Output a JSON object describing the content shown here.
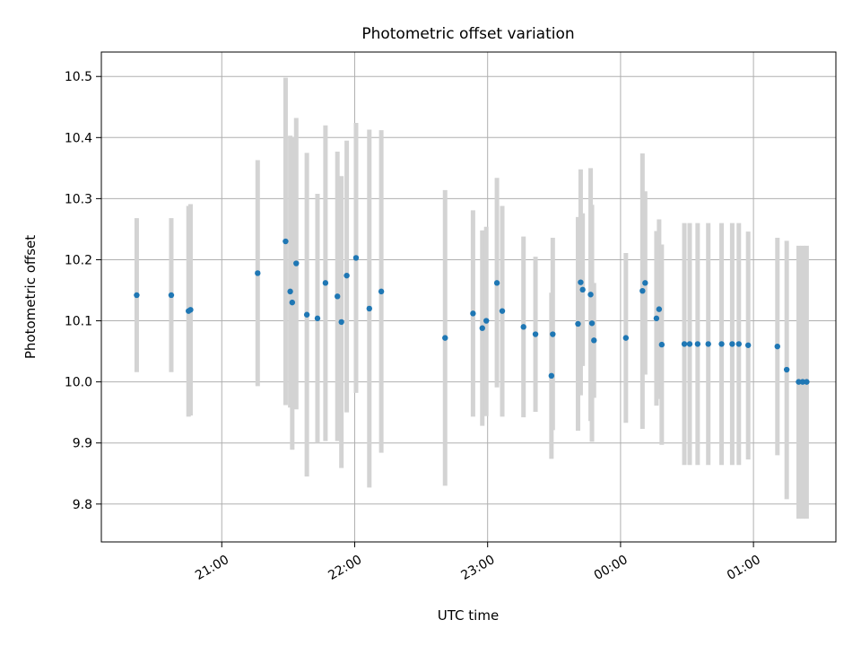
{
  "chart_data": {
    "type": "scatter",
    "title": "Photometric offset variation",
    "xlabel": "UTC time",
    "ylabel": "Photometric offset",
    "x_unit": "UTC time (hours relative to 00:00)",
    "xlim": [
      -2.906,
      2.62
    ],
    "ylim": [
      9.738,
      10.54
    ],
    "x_ticks": [
      {
        "value": -2.0,
        "label": "21:00"
      },
      {
        "value": -1.0,
        "label": "22:00"
      },
      {
        "value": 0.0,
        "label": "23:00"
      },
      {
        "value": 1.0,
        "label": "00:00"
      },
      {
        "value": 2.0,
        "label": "01:00"
      }
    ],
    "y_ticks": [
      {
        "value": 9.8,
        "label": "9.8"
      },
      {
        "value": 9.9,
        "label": "9.9"
      },
      {
        "value": 10.0,
        "label": "10.0"
      },
      {
        "value": 10.1,
        "label": "10.1"
      },
      {
        "value": 10.2,
        "label": "10.2"
      },
      {
        "value": 10.3,
        "label": "10.3"
      },
      {
        "value": 10.4,
        "label": "10.4"
      },
      {
        "value": 10.5,
        "label": "10.5"
      }
    ],
    "grid": true,
    "legend": "none",
    "point_color": "#1f77b4",
    "errorbar_color": "#d3d3d3",
    "points": [
      {
        "x": -2.64,
        "y": 10.142,
        "lo": 10.016,
        "hi": 10.268
      },
      {
        "x": -2.38,
        "y": 10.142,
        "lo": 10.016,
        "hi": 10.268
      },
      {
        "x": -2.25,
        "y": 10.116,
        "lo": 9.943,
        "hi": 10.288
      },
      {
        "x": -2.235,
        "y": 10.118,
        "lo": 9.945,
        "hi": 10.291
      },
      {
        "x": -1.73,
        "y": 10.178,
        "lo": 9.993,
        "hi": 10.363
      },
      {
        "x": -1.52,
        "y": 10.23,
        "lo": 9.962,
        "hi": 10.498
      },
      {
        "x": -1.485,
        "y": 10.148,
        "lo": 9.958,
        "hi": 10.403
      },
      {
        "x": -1.47,
        "y": 10.13,
        "lo": 9.889,
        "hi": 10.401
      },
      {
        "x": -1.44,
        "y": 10.194,
        "lo": 9.955,
        "hi": 10.432
      },
      {
        "x": -1.36,
        "y": 10.11,
        "lo": 9.845,
        "hi": 10.375
      },
      {
        "x": -1.28,
        "y": 10.104,
        "lo": 9.9,
        "hi": 10.308
      },
      {
        "x": -1.22,
        "y": 10.162,
        "lo": 9.903,
        "hi": 10.42
      },
      {
        "x": -1.13,
        "y": 10.14,
        "lo": 9.903,
        "hi": 10.377
      },
      {
        "x": -1.1,
        "y": 10.098,
        "lo": 9.859,
        "hi": 10.337
      },
      {
        "x": -1.06,
        "y": 10.174,
        "lo": 9.95,
        "hi": 10.395
      },
      {
        "x": -0.99,
        "y": 10.203,
        "lo": 9.982,
        "hi": 10.424
      },
      {
        "x": -0.89,
        "y": 10.12,
        "lo": 9.827,
        "hi": 10.413
      },
      {
        "x": -0.8,
        "y": 10.148,
        "lo": 9.884,
        "hi": 10.412
      },
      {
        "x": -0.32,
        "y": 10.072,
        "lo": 9.83,
        "hi": 10.314
      },
      {
        "x": -0.11,
        "y": 10.112,
        "lo": 9.943,
        "hi": 10.281
      },
      {
        "x": -0.04,
        "y": 10.088,
        "lo": 9.928,
        "hi": 10.248
      },
      {
        "x": -0.01,
        "y": 10.1,
        "lo": 9.944,
        "hi": 10.254
      },
      {
        "x": 0.07,
        "y": 10.162,
        "lo": 9.991,
        "hi": 10.334
      },
      {
        "x": 0.11,
        "y": 10.116,
        "lo": 9.943,
        "hi": 10.288
      },
      {
        "x": 0.27,
        "y": 10.09,
        "lo": 9.942,
        "hi": 10.238
      },
      {
        "x": 0.36,
        "y": 10.078,
        "lo": 9.951,
        "hi": 10.205
      },
      {
        "x": 0.48,
        "y": 10.01,
        "lo": 9.874,
        "hi": 10.146
      },
      {
        "x": 0.49,
        "y": 10.078,
        "lo": 9.921,
        "hi": 10.236
      },
      {
        "x": 0.68,
        "y": 10.095,
        "lo": 9.92,
        "hi": 10.27
      },
      {
        "x": 0.7,
        "y": 10.163,
        "lo": 9.978,
        "hi": 10.348
      },
      {
        "x": 0.715,
        "y": 10.151,
        "lo": 10.026,
        "hi": 10.276
      },
      {
        "x": 0.775,
        "y": 10.143,
        "lo": 9.936,
        "hi": 10.35
      },
      {
        "x": 0.785,
        "y": 10.096,
        "lo": 9.902,
        "hi": 10.29
      },
      {
        "x": 0.8,
        "y": 10.068,
        "lo": 9.974,
        "hi": 10.162
      },
      {
        "x": 1.04,
        "y": 10.072,
        "lo": 9.933,
        "hi": 10.211
      },
      {
        "x": 1.165,
        "y": 10.149,
        "lo": 9.923,
        "hi": 10.374
      },
      {
        "x": 1.185,
        "y": 10.162,
        "lo": 10.012,
        "hi": 10.312
      },
      {
        "x": 1.27,
        "y": 10.104,
        "lo": 9.961,
        "hi": 10.247
      },
      {
        "x": 1.29,
        "y": 10.119,
        "lo": 9.972,
        "hi": 10.266
      },
      {
        "x": 1.31,
        "y": 10.061,
        "lo": 9.897,
        "hi": 10.225
      },
      {
        "x": 1.48,
        "y": 10.062,
        "lo": 9.864,
        "hi": 10.26
      },
      {
        "x": 1.52,
        "y": 10.062,
        "lo": 9.864,
        "hi": 10.26
      },
      {
        "x": 1.58,
        "y": 10.062,
        "lo": 9.864,
        "hi": 10.26
      },
      {
        "x": 1.66,
        "y": 10.062,
        "lo": 9.864,
        "hi": 10.26
      },
      {
        "x": 1.76,
        "y": 10.062,
        "lo": 9.864,
        "hi": 10.26
      },
      {
        "x": 1.84,
        "y": 10.062,
        "lo": 9.864,
        "hi": 10.26
      },
      {
        "x": 1.89,
        "y": 10.062,
        "lo": 9.864,
        "hi": 10.26
      },
      {
        "x": 1.96,
        "y": 10.06,
        "lo": 9.873,
        "hi": 10.246
      },
      {
        "x": 2.18,
        "y": 10.058,
        "lo": 9.88,
        "hi": 10.236
      },
      {
        "x": 2.25,
        "y": 10.02,
        "lo": 9.808,
        "hi": 10.231
      },
      {
        "x": 2.34,
        "y": 10.0,
        "lo": 9.776,
        "hi": 10.223
      },
      {
        "x": 2.37,
        "y": 10.0,
        "lo": 9.776,
        "hi": 10.223
      },
      {
        "x": 2.4,
        "y": 10.0,
        "lo": 9.776,
        "hi": 10.223
      }
    ]
  }
}
